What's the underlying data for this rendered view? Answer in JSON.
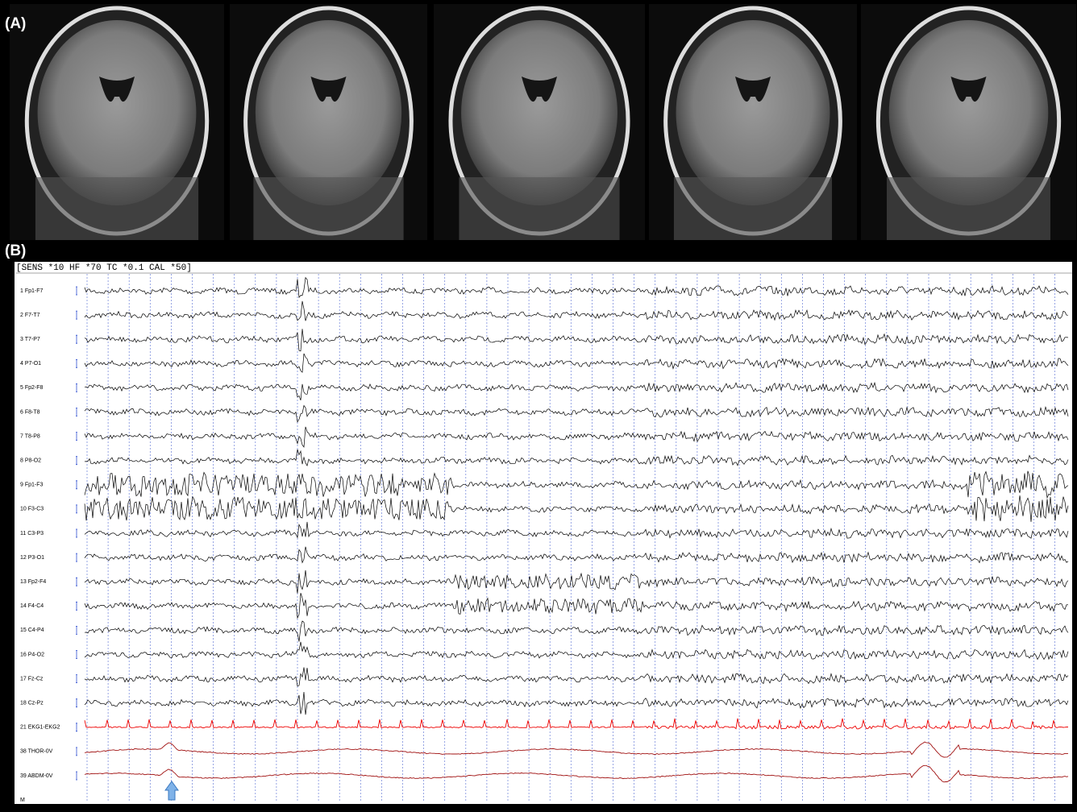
{
  "panel_a": {
    "label": "(A)"
  },
  "panel_b": {
    "label": "(B)",
    "header": "[SENS *10  HF *70  TC *0.1  CAL *50]",
    "channels": [
      "1  Fp1-F7",
      "2  F7-T7",
      "3  T7-P7",
      "4  P7-O1",
      "5  Fp2-F8",
      "6  F8-T8",
      "7  T8-P8",
      "8  P8-O2",
      "9  Fp1-F3",
      "10  F3-C3",
      "11  C3-P3",
      "12  P3-O1",
      "13  Fp2-F4",
      "14  F4-C4",
      "15  C4-P4",
      "16  P4-O2",
      "17  Fz-Cz",
      "18  Cz-Pz",
      "21  EKG1-EKG2",
      "38  THOR-0V",
      "39  ABDM-0V",
      "M"
    ]
  }
}
